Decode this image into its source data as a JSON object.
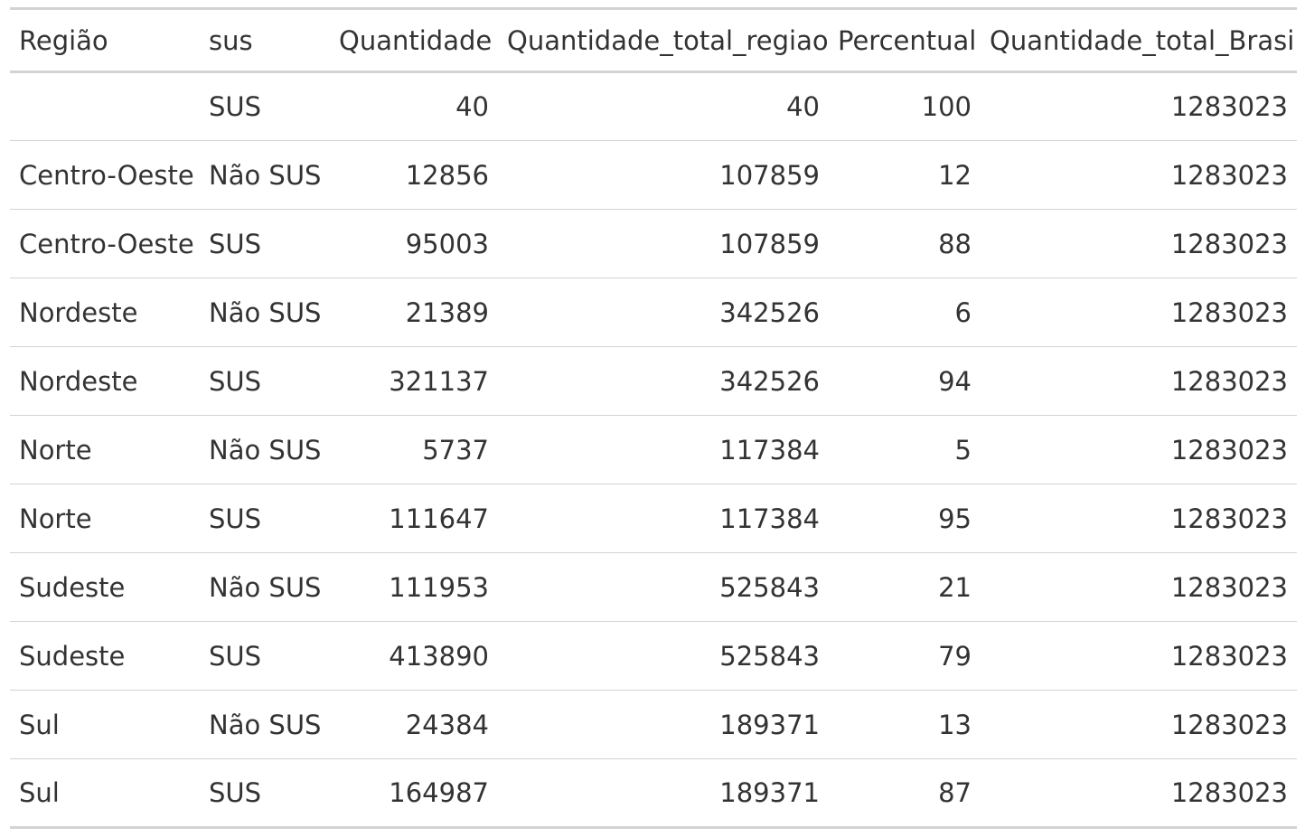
{
  "table": {
    "headers": [
      "Região",
      "sus",
      "Quantidade",
      "Quantidade_total_regiao",
      "Percentual",
      "Quantidade_total_Brasil"
    ],
    "rows": [
      [
        "",
        "SUS",
        "40",
        "40",
        "100",
        "1283023"
      ],
      [
        "Centro-Oeste",
        "Não SUS",
        "12856",
        "107859",
        "12",
        "1283023"
      ],
      [
        "Centro-Oeste",
        "SUS",
        "95003",
        "107859",
        "88",
        "1283023"
      ],
      [
        "Nordeste",
        "Não SUS",
        "21389",
        "342526",
        "6",
        "1283023"
      ],
      [
        "Nordeste",
        "SUS",
        "321137",
        "342526",
        "94",
        "1283023"
      ],
      [
        "Norte",
        "Não SUS",
        "5737",
        "117384",
        "5",
        "1283023"
      ],
      [
        "Norte",
        "SUS",
        "111647",
        "117384",
        "95",
        "1283023"
      ],
      [
        "Sudeste",
        "Não SUS",
        "111953",
        "525843",
        "21",
        "1283023"
      ],
      [
        "Sudeste",
        "SUS",
        "413890",
        "525843",
        "79",
        "1283023"
      ],
      [
        "Sul",
        "Não SUS",
        "24384",
        "189371",
        "13",
        "1283023"
      ],
      [
        "Sul",
        "SUS",
        "164987",
        "189371",
        "87",
        "1283023"
      ]
    ]
  }
}
